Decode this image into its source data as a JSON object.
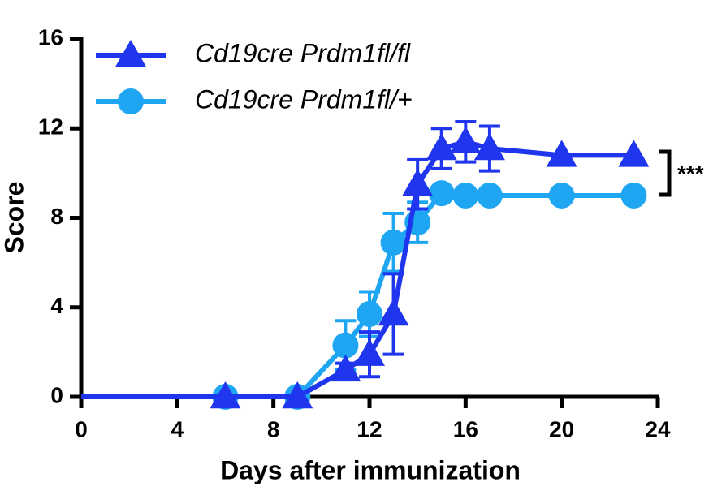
{
  "chart_data": {
    "type": "line",
    "x_label": "Days after immunization",
    "y_label": "Score",
    "xlim": [
      0,
      24
    ],
    "xticks": [
      0,
      4,
      8,
      12,
      16,
      20,
      24
    ],
    "ylim": [
      0,
      16
    ],
    "yticks": [
      0,
      4,
      8,
      12,
      16
    ],
    "annotation": "***",
    "series": [
      {
        "name": "Cd19cre Prdm1fl/+",
        "color": "#1fa6f2",
        "marker": "circle",
        "x": [
          0,
          6,
          9,
          11,
          12,
          13,
          14,
          15,
          16,
          17,
          20,
          23
        ],
        "values": [
          0,
          0,
          0,
          2.3,
          3.7,
          6.9,
          7.8,
          9.1,
          9.0,
          9.0,
          9.0,
          9.0
        ],
        "errors": [
          0,
          0,
          0,
          1.1,
          1.0,
          1.3,
          0.9,
          0.1,
          0.1,
          0.1,
          0,
          0
        ]
      },
      {
        "name": "Cd19cre Prdm1fl/fl",
        "color": "#1f35ee",
        "marker": "triangle",
        "x": [
          0,
          6,
          9,
          11,
          12,
          13,
          14,
          15,
          16,
          17,
          20,
          23
        ],
        "values": [
          0,
          0,
          0,
          1.2,
          1.9,
          3.7,
          9.5,
          11.1,
          11.4,
          11.1,
          10.8,
          10.8
        ],
        "errors": [
          0,
          0,
          0,
          0.3,
          1.0,
          1.8,
          1.1,
          0.9,
          0.9,
          1.0,
          0,
          0
        ]
      }
    ]
  }
}
